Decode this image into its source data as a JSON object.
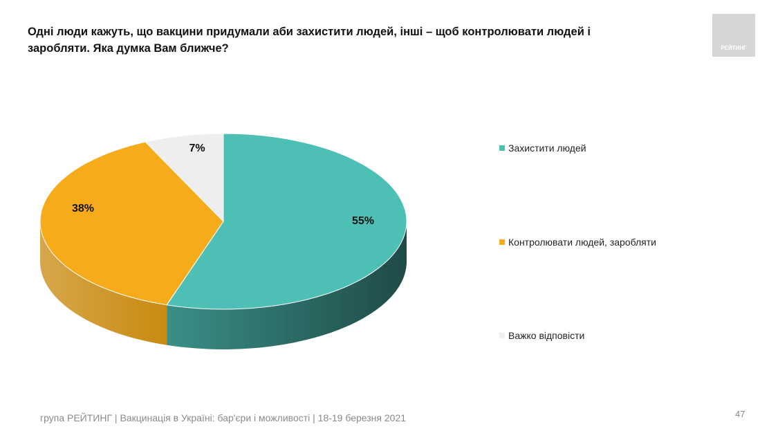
{
  "title": "Одні люди кажуть, що вакцини придумали аби захистити людей, інші – щоб контролювати людей і заробляти. Яка думка Вам ближче?",
  "logo_text": "РЕЙТИНГ",
  "footer": "група РЕЙТИНГ | Вакцинація в Україні: бар'єри і можливості | 18-19 березня 2021",
  "page_number": "47",
  "chart_data": {
    "type": "pie",
    "style": "3d",
    "legend_position": "right",
    "categories": [
      "Захистити людей",
      "Контролювати людей, заробляти",
      "Важко відповісти"
    ],
    "values": [
      55,
      38,
      7
    ],
    "labels": [
      "55%",
      "38%",
      "7%"
    ],
    "colors": [
      "#4dbfb5",
      "#f5ab1a",
      "#eeeeee"
    ],
    "side_colors": [
      "#2f7f78",
      "#c98a10",
      "#cfcfcf"
    ]
  }
}
